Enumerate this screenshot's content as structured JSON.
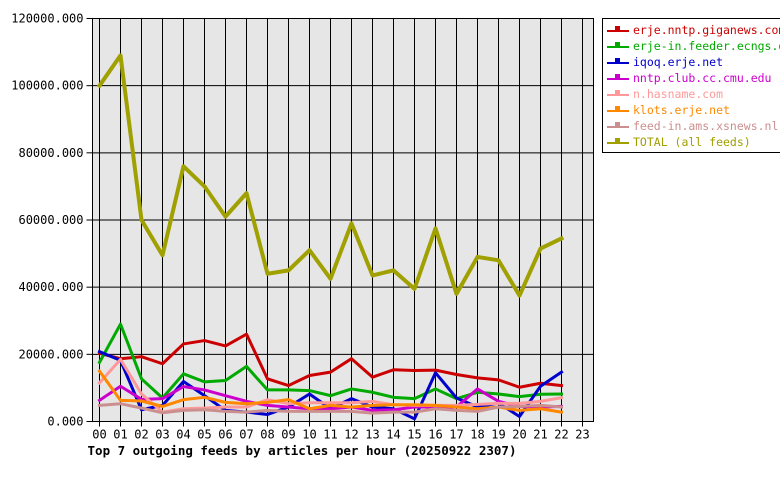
{
  "title": "Top 7 outgoing feeds by articles per hour (20250922 2307)",
  "colors": {
    "background": "#ffffff",
    "plot_background": "#e6e6e6",
    "grid": "#000000",
    "axis_text": "#000000",
    "legend_border": "#000000"
  },
  "chart_data": {
    "type": "line",
    "title": "Top 7 outgoing feeds by articles per hour (20250922 2307)",
    "xlabel": "",
    "ylabel": "",
    "x_labels": [
      "00",
      "01",
      "02",
      "03",
      "04",
      "05",
      "06",
      "07",
      "08",
      "09",
      "10",
      "11",
      "12",
      "13",
      "14",
      "15",
      "16",
      "17",
      "18",
      "19",
      "20",
      "21",
      "22",
      "23"
    ],
    "y_tick_labels": [
      "0.000",
      "20000.000",
      "40000.000",
      "60000.000",
      "80000.000",
      "100000.000",
      "120000.000"
    ],
    "ylim": [
      0,
      120000
    ],
    "y_step": 20000,
    "grid": "on",
    "legend_position": "top-right-outside",
    "note": "data points exist for hours 00 through 22 only",
    "series": [
      {
        "name": "erje.nntp.giganews.com",
        "color": "#cc0000",
        "width": 3,
        "values": [
          20300,
          18700,
          19300,
          17200,
          23100,
          24100,
          22500,
          26000,
          12700,
          10700,
          13700,
          14700,
          18700,
          13200,
          15400,
          15200,
          15300,
          14000,
          13000,
          12400,
          10200,
          11400,
          10700
        ]
      },
      {
        "name": "erje-in.feeder.ecngs.de",
        "color": "#00aa00",
        "width": 3,
        "values": [
          17600,
          29000,
          12700,
          7000,
          14200,
          11800,
          12200,
          16400,
          9400,
          9400,
          9200,
          7700,
          9700,
          8700,
          7200,
          6800,
          9700,
          6800,
          8700,
          8200,
          7400,
          8100,
          8200
        ]
      },
      {
        "name": "iqoq.erje.net",
        "color": "#0000cc",
        "width": 3,
        "values": [
          20800,
          18200,
          3500,
          4800,
          11900,
          7700,
          3300,
          2800,
          2100,
          4300,
          8200,
          3800,
          6800,
          4300,
          3800,
          800,
          14500,
          7000,
          4300,
          5500,
          1500,
          10500,
          14700
        ]
      },
      {
        "name": "nntp.club.cc.cmu.edu",
        "color": "#cc00cc",
        "width": 3,
        "values": [
          6300,
          10500,
          6600,
          6800,
          10400,
          9400,
          7700,
          6000,
          4800,
          4300,
          3800,
          3800,
          4300,
          3300,
          3500,
          4300,
          4300,
          4300,
          9700,
          6000,
          4500,
          4300,
          4500
        ]
      },
      {
        "name": "n.hasname.com",
        "color": "#ff9999",
        "width": 3,
        "values": [
          11500,
          18500,
          8200,
          2800,
          3800,
          4000,
          4300,
          4300,
          6500,
          5300,
          5600,
          5600,
          5600,
          6000,
          5000,
          4800,
          4800,
          4800,
          5100,
          5400,
          5400,
          6000,
          7100
        ]
      },
      {
        "name": "klots.erje.net",
        "color": "#ff8800",
        "width": 3,
        "values": [
          15000,
          6300,
          6100,
          4500,
          6500,
          7200,
          5700,
          5300,
          5700,
          6500,
          3800,
          4800,
          4300,
          4800,
          5000,
          5000,
          4800,
          4300,
          3800,
          4300,
          3300,
          3800,
          2800
        ]
      },
      {
        "name": "feed-in.ams.xsnews.nl",
        "color": "#cc8f8f",
        "width": 3,
        "values": [
          4800,
          5300,
          4000,
          2600,
          3300,
          3500,
          3000,
          2800,
          3300,
          3000,
          3000,
          3000,
          3000,
          2500,
          2800,
          2800,
          3800,
          3300,
          3000,
          4300,
          4500,
          4800,
          4300
        ]
      },
      {
        "name": "TOTAL (all feeds)",
        "color": "#a0a000",
        "width": 4,
        "values": [
          100000,
          109000,
          60000,
          49500,
          76000,
          70000,
          61000,
          68000,
          44000,
          45000,
          51000,
          42500,
          59000,
          43500,
          45000,
          39500,
          57500,
          38000,
          49000,
          48000,
          37500,
          51500,
          54500
        ]
      }
    ]
  },
  "legend": {
    "items": [
      {
        "label": "erje.nntp.giganews.com",
        "color": "#cc0000"
      },
      {
        "label": "erje-in.feeder.ecngs.de",
        "color": "#00aa00"
      },
      {
        "label": "iqoq.erje.net",
        "color": "#0000cc"
      },
      {
        "label": "nntp.club.cc.cmu.edu",
        "color": "#cc00cc"
      },
      {
        "label": "n.hasname.com",
        "color": "#ff9999"
      },
      {
        "label": "klots.erje.net",
        "color": "#ff8800"
      },
      {
        "label": "feed-in.ams.xsnews.nl",
        "color": "#cc8f8f"
      },
      {
        "label": "TOTAL (all feeds)",
        "color": "#a0a000"
      }
    ]
  }
}
